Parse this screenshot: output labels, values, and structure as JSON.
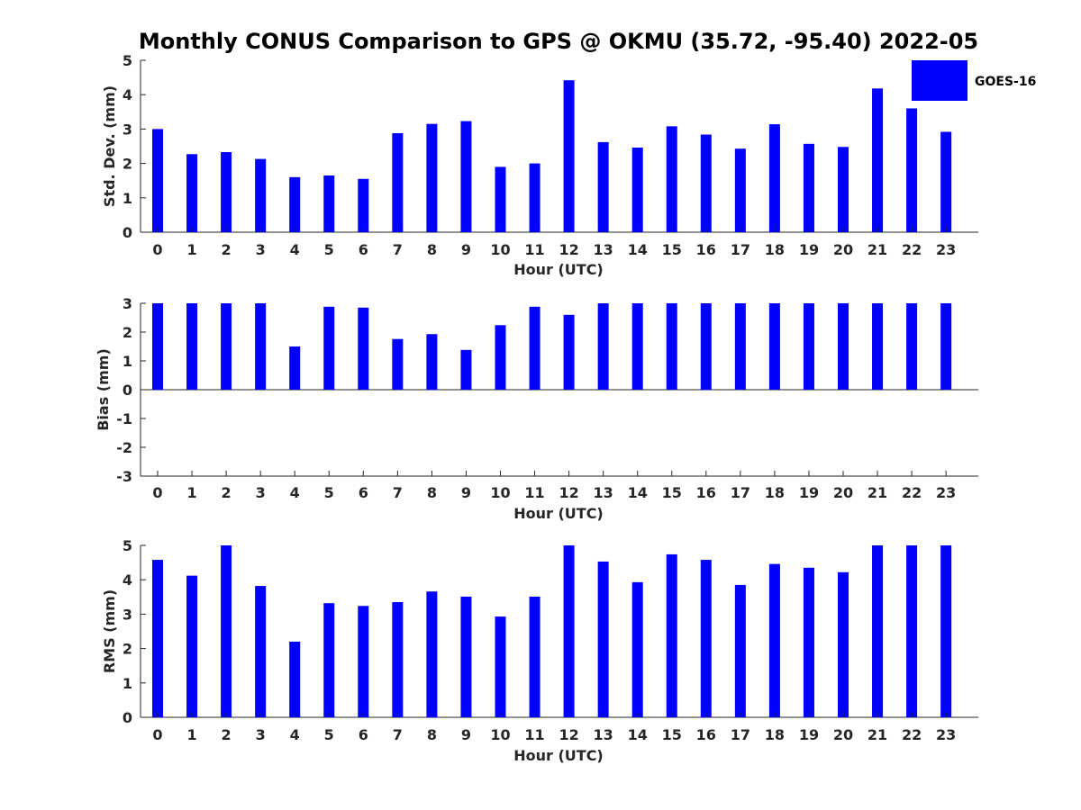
{
  "figure": {
    "title": "Monthly CONUS Comparison to GPS @ OKMU (35.72, -95.40) 2022-05",
    "legend": {
      "entries": [
        "GOES-16"
      ],
      "placement": "top-right, outside first panel"
    },
    "bar_color": "#0000ff"
  },
  "chart_data": [
    {
      "type": "bar",
      "categories": [
        "0",
        "1",
        "2",
        "3",
        "4",
        "5",
        "6",
        "7",
        "8",
        "9",
        "10",
        "11",
        "12",
        "13",
        "14",
        "15",
        "16",
        "17",
        "18",
        "19",
        "20",
        "21",
        "22",
        "23"
      ],
      "series": [
        {
          "name": "GOES-16",
          "values": [
            3.0,
            2.27,
            2.33,
            2.13,
            1.6,
            1.65,
            1.55,
            2.88,
            3.15,
            3.23,
            1.9,
            2.0,
            4.42,
            2.62,
            2.46,
            3.08,
            2.84,
            2.43,
            3.14,
            2.57,
            2.48,
            4.18,
            3.6,
            2.92
          ]
        }
      ],
      "xlabel": "Hour (UTC)",
      "ylabel": "Std. Dev. (mm)",
      "ylim": [
        0,
        5
      ],
      "yticks": [
        "0",
        "1",
        "2",
        "3",
        "4",
        "5"
      ],
      "grid": false
    },
    {
      "type": "bar",
      "categories": [
        "0",
        "1",
        "2",
        "3",
        "4",
        "5",
        "6",
        "7",
        "8",
        "9",
        "10",
        "11",
        "12",
        "13",
        "14",
        "15",
        "16",
        "17",
        "18",
        "19",
        "20",
        "21",
        "22",
        "23"
      ],
      "series": [
        {
          "name": "GOES-16",
          "values": [
            3.0,
            3.0,
            3.0,
            3.0,
            1.5,
            2.88,
            2.85,
            1.76,
            1.93,
            1.38,
            2.24,
            2.88,
            2.6,
            3.0,
            3.0,
            3.0,
            3.0,
            3.0,
            3.0,
            3.0,
            3.0,
            3.0,
            3.0,
            3.0
          ]
        }
      ],
      "xlabel": "Hour (UTC)",
      "ylabel": "Bias (mm)",
      "ylim": [
        -3,
        3
      ],
      "yticks": [
        "-3",
        "-2",
        "-1",
        "0",
        "1",
        "2",
        "3"
      ],
      "grid": false
    },
    {
      "type": "bar",
      "categories": [
        "0",
        "1",
        "2",
        "3",
        "4",
        "5",
        "6",
        "7",
        "8",
        "9",
        "10",
        "11",
        "12",
        "13",
        "14",
        "15",
        "16",
        "17",
        "18",
        "19",
        "20",
        "21",
        "22",
        "23"
      ],
      "series": [
        {
          "name": "GOES-16",
          "values": [
            4.58,
            4.12,
            5.0,
            3.82,
            2.2,
            3.32,
            3.24,
            3.35,
            3.66,
            3.51,
            2.93,
            3.51,
            5.0,
            4.53,
            3.93,
            4.74,
            4.58,
            3.85,
            4.46,
            4.35,
            4.22,
            5.0,
            5.0,
            5.0
          ]
        }
      ],
      "xlabel": "Hour (UTC)",
      "ylabel": "RMS (mm)",
      "ylim": [
        0,
        5
      ],
      "yticks": [
        "0",
        "1",
        "2",
        "3",
        "4",
        "5"
      ],
      "grid": false
    }
  ]
}
